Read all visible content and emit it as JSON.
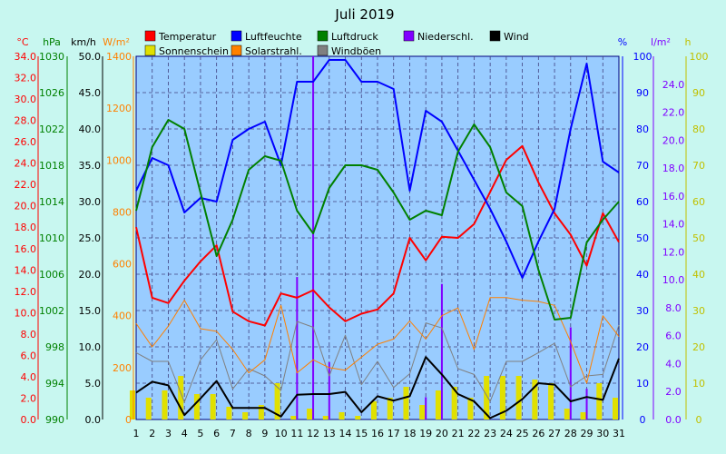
{
  "chart_data": {
    "type": "line",
    "title": "Juli 2019",
    "x": [
      1,
      2,
      3,
      4,
      5,
      6,
      7,
      8,
      9,
      10,
      11,
      12,
      13,
      14,
      15,
      16,
      17,
      18,
      19,
      20,
      21,
      22,
      23,
      24,
      25,
      26,
      27,
      28,
      29,
      30,
      31
    ],
    "x_tick_labels": [
      "1",
      "2",
      "3",
      "4",
      "5",
      "6",
      "7",
      "8",
      "9",
      "10",
      "11",
      "12",
      "13",
      "14",
      "15",
      "16",
      "17",
      "18",
      "19",
      "20",
      "21",
      "22",
      "23",
      "24",
      "25",
      "26",
      "27",
      "28",
      "29",
      "30",
      "31"
    ],
    "grid": true,
    "axes": {
      "temp": {
        "unit": "°C",
        "color": "#ff0000",
        "min": 0,
        "max": 34,
        "step": 2,
        "side": "left",
        "ticks": [
          "0.0",
          "2.0",
          "4.0",
          "6.0",
          "8.0",
          "10.0",
          "12.0",
          "14.0",
          "16.0",
          "18.0",
          "20.0",
          "22.0",
          "24.0",
          "26.0",
          "28.0",
          "30.0",
          "32.0",
          "34.0"
        ]
      },
      "press": {
        "unit": "hPa",
        "color": "#008000",
        "min": 990,
        "max": 1030,
        "step": 4,
        "side": "left",
        "ticks": [
          "990",
          "994",
          "998",
          "1002",
          "1006",
          "1010",
          "1014",
          "1018",
          "1022",
          "1026",
          "1030"
        ]
      },
      "wind": {
        "unit": "km/h",
        "color": "#000000",
        "min": 0,
        "max": 50,
        "step": 5,
        "side": "left",
        "ticks": [
          "0.0",
          "5.0",
          "10.0",
          "15.0",
          "20.0",
          "25.0",
          "30.0",
          "35.0",
          "40.0",
          "45.0",
          "50.0"
        ]
      },
      "solar": {
        "unit": "W/m²",
        "color": "#ff8000",
        "min": 0,
        "max": 1400,
        "step": 200,
        "side": "left",
        "ticks": [
          "0",
          "200",
          "400",
          "600",
          "800",
          "1000",
          "1200",
          "1400"
        ]
      },
      "hum": {
        "unit": "%",
        "color": "#0000ff",
        "min": 0,
        "max": 100,
        "step": 10,
        "side": "right",
        "ticks": [
          "0",
          "10",
          "20",
          "30",
          "40",
          "50",
          "60",
          "70",
          "80",
          "90",
          "100"
        ]
      },
      "rain": {
        "unit": "l/m²",
        "color": "#8000ff",
        "min": 0,
        "max": 26,
        "step": 2,
        "side": "right",
        "ticks": [
          "0.0",
          "2.0",
          "4.0",
          "6.0",
          "8.0",
          "10.0",
          "12.0",
          "14.0",
          "16.0",
          "18.0",
          "20.0",
          "22.0",
          "24.0"
        ]
      },
      "sun": {
        "unit": "h",
        "color": "#c0c000",
        "min": 0,
        "max": 100,
        "step": 10,
        "side": "right",
        "ticks": [
          "0",
          "10",
          "20",
          "30",
          "40",
          "50",
          "60",
          "70",
          "80",
          "90",
          "100"
        ]
      }
    },
    "series": [
      {
        "name": "Temperatur",
        "key": "temp",
        "color": "#ff0000",
        "kind": "line",
        "width": 2,
        "values": [
          18,
          11.4,
          10.9,
          13,
          14.8,
          16.3,
          10.1,
          9.2,
          8.8,
          11.8,
          11.4,
          12.1,
          10.5,
          9.2,
          9.9,
          10.3,
          11.8,
          17,
          14.9,
          17.1,
          17,
          18.3,
          21.3,
          24.3,
          25.6,
          22.2,
          19.3,
          17.3,
          14.4,
          19.3,
          16.6
        ]
      },
      {
        "name": "Luftfeuchte",
        "key": "hum",
        "color": "#0000ff",
        "kind": "line",
        "width": 2,
        "values": [
          63,
          72,
          70,
          57,
          61,
          60,
          77,
          80,
          82,
          70,
          93,
          93,
          99,
          99,
          93,
          93,
          91,
          63,
          85,
          82,
          74,
          66,
          58,
          49,
          39,
          49,
          58,
          80,
          98,
          71,
          68
        ]
      },
      {
        "name": "Luftdruck",
        "key": "press",
        "color": "#008000",
        "kind": "line",
        "width": 2,
        "values": [
          1013,
          1020,
          1023,
          1022,
          1015,
          1008,
          1012,
          1017.5,
          1019,
          1018.5,
          1013,
          1010.5,
          1015.5,
          1018,
          1018,
          1017.5,
          1015,
          1012,
          1013,
          1012.5,
          1019.5,
          1022.5,
          1020,
          1015,
          1013.5,
          1006.5,
          1001,
          1001.2,
          1009.5,
          1012,
          1014
        ]
      },
      {
        "name": "Wind",
        "key": "wind",
        "color": "#000000",
        "kind": "line",
        "width": 2,
        "values": [
          3.7,
          5.2,
          4.7,
          0.6,
          2.9,
          5.3,
          1.6,
          1.6,
          1.6,
          0.4,
          3.4,
          3.5,
          3.5,
          3.8,
          1,
          3.2,
          2.6,
          3.2,
          8.6,
          6.2,
          3.5,
          2.5,
          0.2,
          1.2,
          2.8,
          5,
          4.8,
          2.5,
          3.1,
          2.7,
          8.4
        ]
      },
      {
        "name": "Windböen",
        "key": "wind",
        "color": "#808080",
        "kind": "line",
        "width": 1,
        "values": [
          9.2,
          8,
          8,
          2.4,
          8.2,
          11,
          4.2,
          7,
          6,
          4,
          13.5,
          12.7,
          6,
          11.6,
          4.8,
          8,
          4.4,
          6.3,
          13.3,
          12.6,
          7,
          6.2,
          2.5,
          8,
          8,
          9.2,
          10.5,
          4.5,
          6,
          6.2,
          13
        ]
      },
      {
        "name": "Solarstrahl.",
        "key": "solar",
        "color": "#ff8000",
        "kind": "line",
        "width": 1,
        "values": [
          370,
          280,
          360,
          460,
          350,
          340,
          270,
          180,
          230,
          440,
          180,
          230,
          200,
          190,
          240,
          290,
          310,
          380,
          310,
          400,
          430,
          270,
          470,
          470,
          460,
          455,
          440,
          300,
          140,
          400,
          320
        ]
      },
      {
        "name": "Sonnenschein",
        "key": "sun",
        "color": "#e0e000",
        "kind": "bar",
        "values": [
          8,
          6,
          8,
          12,
          7,
          7,
          3.5,
          2,
          4,
          10,
          1,
          3,
          1,
          2,
          1,
          5,
          6,
          9,
          4,
          8,
          9,
          6,
          12,
          12,
          12,
          11,
          10,
          3,
          2,
          10,
          6
        ]
      },
      {
        "name": "Niederschl.",
        "key": "rain",
        "color": "#8000ff",
        "kind": "rainbar",
        "values": [
          0,
          0,
          0,
          0,
          0,
          0,
          0,
          0,
          0,
          0,
          10.2,
          26,
          4.1,
          0,
          0,
          0,
          0,
          0,
          1.6,
          9.7,
          0,
          0,
          0,
          0,
          0,
          0,
          0,
          6.6,
          2.2,
          0,
          0
        ]
      }
    ],
    "legend": {
      "placement": "top",
      "items": [
        {
          "name": "Temperatur",
          "color": "#ff0000"
        },
        {
          "name": "Luftfeuchte",
          "color": "#0000ff"
        },
        {
          "name": "Luftdruck",
          "color": "#008000"
        },
        {
          "name": "Niederschl.",
          "color": "#8000ff"
        },
        {
          "name": "Wind",
          "color": "#000000"
        },
        {
          "name": "Sonnenschein",
          "color": "#e0e000"
        },
        {
          "name": "Solarstrahl.",
          "color": "#ff8000"
        },
        {
          "name": "Windböen",
          "color": "#808080"
        }
      ]
    }
  },
  "colors": {
    "background": "#c8f7f0",
    "plot_background": "#99ccff",
    "grid": "#404080"
  }
}
